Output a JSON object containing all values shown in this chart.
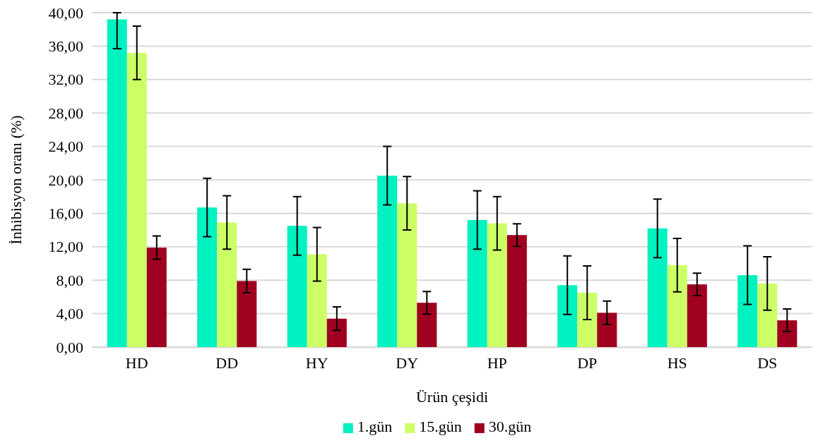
{
  "chart_data": {
    "type": "bar",
    "xlabel": "Ürün çeşidi",
    "ylabel": "İnhibisyon oranı (%)",
    "categories": [
      "HD",
      "DD",
      "HY",
      "DY",
      "HP",
      "DP",
      "HS",
      "DS"
    ],
    "series": [
      {
        "name": "1.gün",
        "color": "#00f2c0",
        "values": [
          39.2,
          16.7,
          14.5,
          20.5,
          15.2,
          7.4,
          14.2,
          8.6
        ],
        "errors": [
          [
            35.7,
            40
          ],
          3.5,
          3.5,
          3.5,
          3.5,
          3.5,
          3.5,
          3.5
        ]
      },
      {
        "name": "15.gün",
        "color": "#ccff66",
        "values": [
          35.2,
          14.9,
          11.1,
          17.2,
          14.8,
          6.5,
          9.8,
          7.6
        ],
        "errors": [
          3.2,
          3.2,
          3.2,
          3.2,
          3.2,
          3.2,
          3.2,
          3.2
        ]
      },
      {
        "name": "30.gün",
        "color": "#a00020",
        "values": [
          11.9,
          7.9,
          3.4,
          5.3,
          13.4,
          4.1,
          7.5,
          3.2
        ],
        "errors": [
          1.4,
          1.4,
          1.4,
          1.35,
          1.35,
          1.4,
          1.35,
          1.35
        ]
      }
    ],
    "ylim": [
      0,
      40
    ],
    "yticks": [
      {
        "value": 0,
        "label": "0,00"
      },
      {
        "value": 4,
        "label": "4,00"
      },
      {
        "value": 8,
        "label": "8,00"
      },
      {
        "value": 12,
        "label": "12,00"
      },
      {
        "value": 16,
        "label": "16,00"
      },
      {
        "value": 20,
        "label": "20,00"
      },
      {
        "value": 24,
        "label": "24,00"
      },
      {
        "value": 28,
        "label": "28,00"
      },
      {
        "value": 32,
        "label": "32,00"
      },
      {
        "value": 36,
        "label": "36,00"
      },
      {
        "value": 40,
        "label": "40,00"
      }
    ],
    "grid": "y",
    "legend": "bottom"
  }
}
